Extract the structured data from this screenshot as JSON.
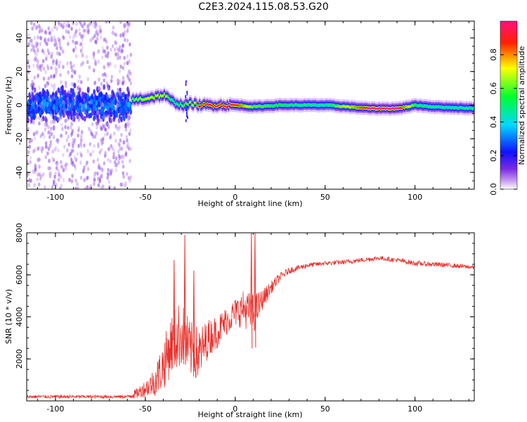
{
  "title": "C2E3.2024.115.08.53.G20",
  "colors": {
    "snr_line": "#e8322d",
    "axis": "#000000",
    "background": "#ffffff"
  },
  "chart_data": [
    {
      "type": "heatmap",
      "title": "C2E3.2024.115.08.53.G20",
      "xlabel": "Height of straight line (km)",
      "ylabel": "Frequency (Hz)",
      "xlim": [
        -116,
        133
      ],
      "ylim": [
        -50,
        50
      ],
      "xticks": [
        -100,
        -50,
        0,
        50,
        100
      ],
      "yticks": [
        -40,
        -20,
        0,
        20,
        40
      ],
      "colorbar": {
        "label": "Normalized spectral amplitude",
        "range": [
          0,
          1
        ],
        "ticks": [
          0.0,
          0.2,
          0.4,
          0.6,
          0.8
        ],
        "colormap": [
          "#ffffff",
          "#8a2be2",
          "#0000ff",
          "#00ffff",
          "#00ff00",
          "#ffff00",
          "#ff0000",
          "#ff1493"
        ]
      },
      "ridge": {
        "x": [
          -58,
          -50,
          -45,
          -40,
          -35,
          -30,
          -25,
          -20,
          -10,
          0,
          10,
          25,
          50,
          75,
          90,
          100,
          110,
          133
        ],
        "y": [
          3,
          4,
          5,
          6,
          2,
          0,
          1,
          0,
          0,
          0,
          -1,
          0,
          0,
          -2,
          -2,
          0,
          -1,
          -2
        ],
        "amplitude": [
          0.6,
          0.7,
          0.75,
          0.7,
          0.5,
          0.6,
          0.65,
          0.85,
          0.9,
          0.9,
          0.6,
          0.55,
          0.5,
          0.95,
          0.95,
          0.55,
          0.5,
          0.5
        ]
      },
      "noise_region": {
        "x_range": [
          -116,
          -58
        ],
        "y_range": [
          -50,
          50
        ],
        "core_amplitude": 0.3
      }
    },
    {
      "type": "line",
      "xlabel": "Height of straight line (km)",
      "ylabel": "SNR (10 * v/v)",
      "xlim": [
        -116,
        133
      ],
      "ylim": [
        0,
        8000
      ],
      "xticks": [
        -100,
        -50,
        0,
        50,
        100
      ],
      "yticks": [
        2000,
        4000,
        6000,
        8000
      ],
      "envelope": {
        "x": [
          -116,
          -60,
          -55,
          -50,
          -45,
          -40,
          -35,
          -30,
          -25,
          -20,
          -15,
          -10,
          -5,
          0,
          5,
          10,
          15,
          20,
          25,
          30,
          40,
          50,
          60,
          70,
          80,
          90,
          100,
          110,
          120,
          133
        ],
        "y": [
          200,
          200,
          350,
          600,
          900,
          1700,
          2800,
          3200,
          2400,
          2200,
          3000,
          3300,
          3800,
          4200,
          4400,
          4100,
          4800,
          5400,
          5900,
          6200,
          6450,
          6550,
          6600,
          6700,
          6800,
          6700,
          6550,
          6500,
          6450,
          6350
        ],
        "noise": [
          80,
          80,
          250,
          400,
          700,
          1200,
          1500,
          1600,
          1400,
          1300,
          900,
          800,
          700,
          700,
          900,
          1000,
          500,
          300,
          200,
          150,
          120,
          110,
          110,
          110,
          110,
          110,
          120,
          120,
          110,
          100
        ]
      },
      "spikes": [
        {
          "x": -34,
          "y": 6700
        },
        {
          "x": -28,
          "y": 7900
        },
        {
          "x": -23,
          "y": 6200
        },
        {
          "x": 9,
          "y": 8000
        },
        {
          "x": 11,
          "y": 8000
        }
      ]
    }
  ]
}
